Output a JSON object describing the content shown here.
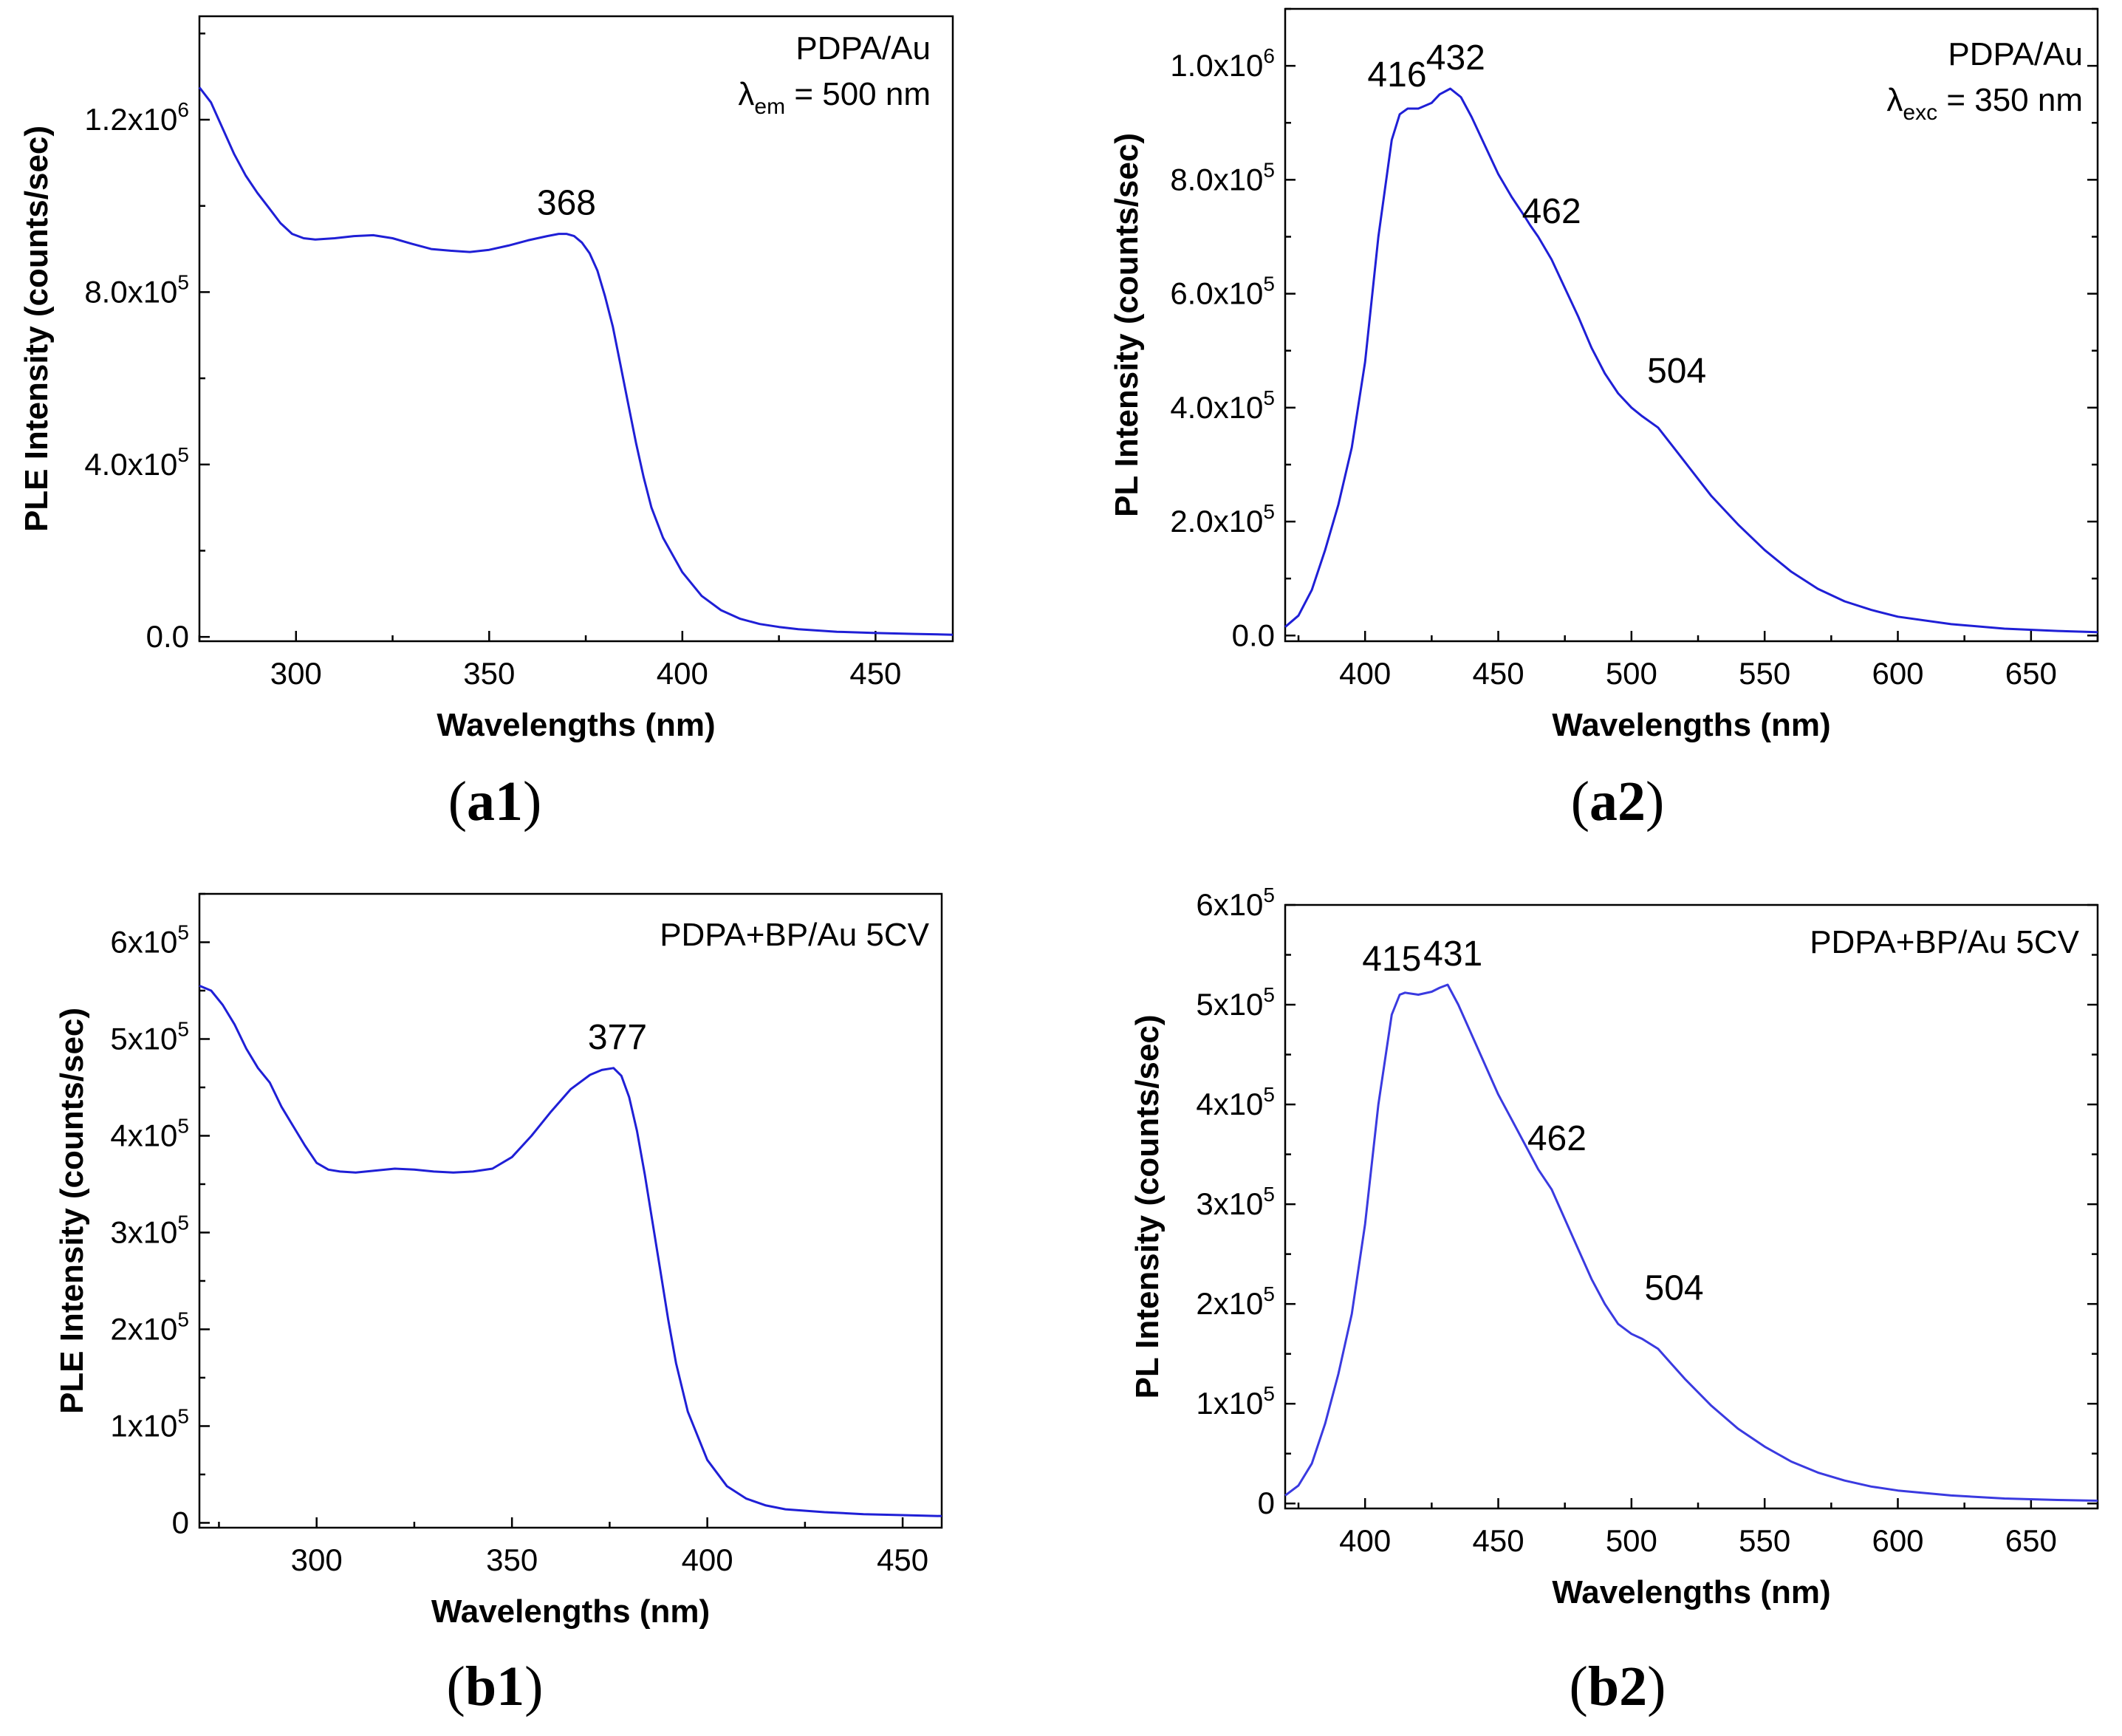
{
  "chart_data": [
    {
      "id": "a1",
      "type": "line",
      "panel_label": "a1",
      "xlabel": "Wavelengths (nm)",
      "ylabel": "PLE Intensity (counts/sec)",
      "xlim": [
        275,
        470
      ],
      "ylim": [
        -10000,
        1440000
      ],
      "xticks": [
        {
          "value": 300,
          "label": "300"
        },
        {
          "value": 350,
          "label": "350"
        },
        {
          "value": 400,
          "label": "400"
        },
        {
          "value": 450,
          "label": "450"
        }
      ],
      "yticks": [
        {
          "value": 0,
          "mantissa": "0.0",
          "exp": ""
        },
        {
          "value": 400000,
          "mantissa": "4.0x10",
          "exp": "5"
        },
        {
          "value": 800000,
          "mantissa": "8.0x10",
          "exp": "5"
        },
        {
          "value": 1200000,
          "mantissa": "1.2x10",
          "exp": "6"
        }
      ],
      "annotation": {
        "line1": "PDPA/Au",
        "symbol": "λ",
        "sub": "em",
        "rest": " = 500 nm"
      },
      "peaks": [
        {
          "label": "368",
          "x": 370,
          "y": 935000
        }
      ],
      "series": [
        {
          "name": "PDPA/Au PLE",
          "color": "#1f1fd6",
          "x": [
            275,
            278,
            281,
            284,
            287,
            290,
            293,
            296,
            299,
            302,
            305,
            310,
            315,
            320,
            325,
            330,
            335,
            340,
            345,
            350,
            355,
            360,
            365,
            368,
            370,
            372,
            374,
            376,
            378,
            380,
            382,
            384,
            386,
            388,
            390,
            392,
            395,
            400,
            405,
            410,
            415,
            420,
            425,
            430,
            440,
            450,
            460,
            470
          ],
          "y": [
            1275000,
            1240000,
            1180000,
            1120000,
            1070000,
            1030000,
            995000,
            960000,
            935000,
            925000,
            922000,
            925000,
            930000,
            932000,
            925000,
            912000,
            900000,
            896000,
            893000,
            898000,
            908000,
            920000,
            930000,
            935000,
            935000,
            930000,
            915000,
            890000,
            850000,
            790000,
            720000,
            630000,
            540000,
            450000,
            370000,
            300000,
            230000,
            150000,
            95000,
            62000,
            42000,
            30000,
            23000,
            18000,
            12000,
            9000,
            7000,
            5000
          ]
        }
      ]
    },
    {
      "id": "a2",
      "type": "line",
      "panel_label": "a2",
      "xlabel": "Wavelengths (nm)",
      "ylabel": "PL Intensity (counts/sec)",
      "xlim": [
        370,
        675
      ],
      "ylim": [
        -10000,
        1100000
      ],
      "xticks": [
        {
          "value": 400,
          "label": "400"
        },
        {
          "value": 450,
          "label": "450"
        },
        {
          "value": 500,
          "label": "500"
        },
        {
          "value": 550,
          "label": "550"
        },
        {
          "value": 600,
          "label": "600"
        },
        {
          "value": 650,
          "label": "650"
        }
      ],
      "yticks": [
        {
          "value": 0,
          "mantissa": "0.0",
          "exp": ""
        },
        {
          "value": 200000,
          "mantissa": "2.0x10",
          "exp": "5"
        },
        {
          "value": 400000,
          "mantissa": "4.0x10",
          "exp": "5"
        },
        {
          "value": 600000,
          "mantissa": "6.0x10",
          "exp": "5"
        },
        {
          "value": 800000,
          "mantissa": "8.0x10",
          "exp": "5"
        },
        {
          "value": 1000000,
          "mantissa": "1.0x10",
          "exp": "6"
        }
      ],
      "annotation": {
        "line1": "PDPA/Au",
        "symbol": "λ",
        "sub": "exc",
        "rest": " = 350 nm"
      },
      "peaks": [
        {
          "label": "416",
          "x": 412,
          "y": 930000
        },
        {
          "label": "432",
          "x": 434,
          "y": 960000
        },
        {
          "label": "462",
          "x": 470,
          "y": 690000
        },
        {
          "label": "504",
          "x": 517,
          "y": 410000
        }
      ],
      "series": [
        {
          "name": "PDPA/Au PL",
          "color": "#1f1fd6",
          "x": [
            370,
            375,
            380,
            385,
            390,
            395,
            400,
            405,
            410,
            413,
            416,
            420,
            425,
            428,
            432,
            436,
            440,
            445,
            450,
            455,
            460,
            462,
            465,
            470,
            475,
            480,
            485,
            490,
            495,
            500,
            504,
            510,
            515,
            520,
            530,
            540,
            550,
            560,
            570,
            580,
            590,
            600,
            620,
            640,
            660,
            675
          ],
          "y": [
            15000,
            35000,
            80000,
            150000,
            230000,
            330000,
            480000,
            700000,
            870000,
            915000,
            925000,
            925000,
            935000,
            950000,
            960000,
            945000,
            910000,
            860000,
            810000,
            770000,
            735000,
            720000,
            700000,
            660000,
            610000,
            560000,
            505000,
            460000,
            425000,
            400000,
            385000,
            365000,
            335000,
            305000,
            245000,
            195000,
            150000,
            112000,
            82000,
            60000,
            45000,
            33000,
            20000,
            12000,
            8000,
            6000
          ]
        }
      ]
    },
    {
      "id": "b1",
      "type": "line",
      "panel_label": "b1",
      "xlabel": "Wavelengths (nm)",
      "ylabel": "PLE Intensity (counts/sec)",
      "xlim": [
        270,
        460
      ],
      "ylim": [
        -5000,
        650000
      ],
      "xticks": [
        {
          "value": 300,
          "label": "300"
        },
        {
          "value": 350,
          "label": "350"
        },
        {
          "value": 400,
          "label": "400"
        },
        {
          "value": 450,
          "label": "450"
        }
      ],
      "yticks": [
        {
          "value": 0,
          "mantissa": "0",
          "exp": ""
        },
        {
          "value": 100000,
          "mantissa": "1x10",
          "exp": "5"
        },
        {
          "value": 200000,
          "mantissa": "2x10",
          "exp": "5"
        },
        {
          "value": 300000,
          "mantissa": "3x10",
          "exp": "5"
        },
        {
          "value": 400000,
          "mantissa": "4x10",
          "exp": "5"
        },
        {
          "value": 500000,
          "mantissa": "5x10",
          "exp": "5"
        },
        {
          "value": 600000,
          "mantissa": "6x10",
          "exp": "5"
        }
      ],
      "annotation": {
        "line1": "PDPA+BP/Au 5CV",
        "symbol": "",
        "sub": "",
        "rest": ""
      },
      "peaks": [
        {
          "label": "377",
          "x": 377,
          "y": 470000
        }
      ],
      "series": [
        {
          "name": "PDPA+BP/Au 5CV PLE",
          "color": "#1f1fd6",
          "x": [
            270,
            273,
            276,
            279,
            282,
            285,
            288,
            291,
            294,
            297,
            300,
            303,
            306,
            310,
            315,
            320,
            325,
            330,
            335,
            340,
            345,
            350,
            355,
            360,
            365,
            370,
            373,
            376,
            378,
            380,
            382,
            384,
            386,
            388,
            390,
            392,
            395,
            400,
            405,
            410,
            415,
            420,
            430,
            440,
            450,
            460
          ],
          "y": [
            555000,
            550000,
            535000,
            515000,
            490000,
            470000,
            455000,
            430000,
            410000,
            390000,
            372000,
            365000,
            363000,
            362000,
            364000,
            366000,
            365000,
            363000,
            362000,
            363000,
            366000,
            378000,
            400000,
            425000,
            448000,
            463000,
            468000,
            470000,
            462000,
            440000,
            405000,
            360000,
            310000,
            260000,
            210000,
            165000,
            115000,
            65000,
            38000,
            25000,
            18000,
            14000,
            11000,
            9000,
            8000,
            7000
          ]
        }
      ]
    },
    {
      "id": "b2",
      "type": "line",
      "panel_label": "b2",
      "xlabel": "Wavelengths (nm)",
      "ylabel": "PL Intensity (counts/sec)",
      "xlim": [
        370,
        675
      ],
      "ylim": [
        -5000,
        600000
      ],
      "xticks": [
        {
          "value": 400,
          "label": "400"
        },
        {
          "value": 450,
          "label": "450"
        },
        {
          "value": 500,
          "label": "500"
        },
        {
          "value": 550,
          "label": "550"
        },
        {
          "value": 600,
          "label": "600"
        },
        {
          "value": 650,
          "label": "650"
        }
      ],
      "yticks": [
        {
          "value": 0,
          "mantissa": "0",
          "exp": ""
        },
        {
          "value": 100000,
          "mantissa": "1x10",
          "exp": "5"
        },
        {
          "value": 200000,
          "mantissa": "2x10",
          "exp": "5"
        },
        {
          "value": 300000,
          "mantissa": "3x10",
          "exp": "5"
        },
        {
          "value": 400000,
          "mantissa": "4x10",
          "exp": "5"
        },
        {
          "value": 500000,
          "mantissa": "5x10",
          "exp": "5"
        },
        {
          "value": 600000,
          "mantissa": "6x10",
          "exp": "5"
        }
      ],
      "annotation": {
        "line1": "PDPA+BP/Au 5CV",
        "symbol": "",
        "sub": "",
        "rest": ""
      },
      "peaks": [
        {
          "label": "415",
          "x": 410,
          "y": 515000
        },
        {
          "label": "431",
          "x": 433,
          "y": 520000
        },
        {
          "label": "462",
          "x": 472,
          "y": 335000
        },
        {
          "label": "504",
          "x": 516,
          "y": 185000
        }
      ],
      "series": [
        {
          "name": "PDPA+BP/Au 5CV PL",
          "color": "#3a3ae0",
          "x": [
            370,
            375,
            380,
            385,
            390,
            395,
            400,
            405,
            410,
            413,
            415,
            420,
            425,
            428,
            431,
            435,
            440,
            445,
            450,
            455,
            460,
            462,
            465,
            470,
            475,
            480,
            485,
            490,
            495,
            500,
            504,
            510,
            515,
            520,
            530,
            540,
            550,
            560,
            570,
            580,
            590,
            600,
            620,
            640,
            660,
            675
          ],
          "y": [
            8000,
            18000,
            40000,
            80000,
            130000,
            190000,
            280000,
            400000,
            490000,
            510000,
            512000,
            510000,
            513000,
            517000,
            520000,
            500000,
            470000,
            440000,
            410000,
            385000,
            360000,
            350000,
            335000,
            315000,
            285000,
            255000,
            225000,
            200000,
            180000,
            170000,
            165000,
            155000,
            140000,
            125000,
            98000,
            75000,
            57000,
            42000,
            31000,
            23000,
            17000,
            13000,
            8000,
            5000,
            3500,
            2800
          ]
        }
      ]
    }
  ]
}
